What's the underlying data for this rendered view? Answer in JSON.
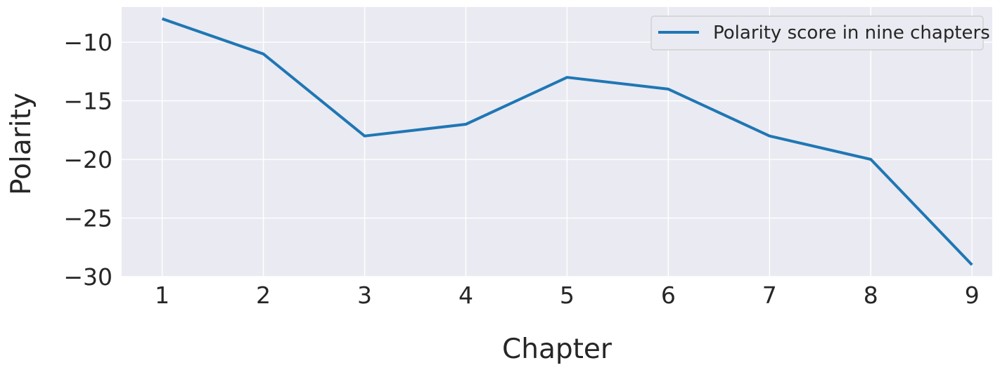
{
  "chart_data": {
    "type": "line",
    "title": "",
    "xlabel": "Chapter",
    "ylabel": "Polarity",
    "x": [
      1,
      2,
      3,
      4,
      5,
      6,
      7,
      8,
      9
    ],
    "series": [
      {
        "name": "Polarity score in nine chapters",
        "values": [
          -8,
          -11,
          -18,
          -17,
          -13,
          -14,
          -18,
          -20,
          -29
        ],
        "color": "#1f77b4"
      }
    ],
    "xticks": [
      "1",
      "2",
      "3",
      "4",
      "5",
      "6",
      "7",
      "8",
      "9"
    ],
    "yticks": [
      -10,
      -15,
      -20,
      -25,
      -30
    ],
    "ytick_labels": [
      "−10",
      "−15",
      "−20",
      "−25",
      "−30"
    ],
    "xlim": [
      0.6,
      9.2
    ],
    "ylim": [
      -30,
      -7
    ],
    "grid": true,
    "legend_position": "top-right",
    "plot_background": "#eaeaf2",
    "grid_color": "#ffffff"
  }
}
